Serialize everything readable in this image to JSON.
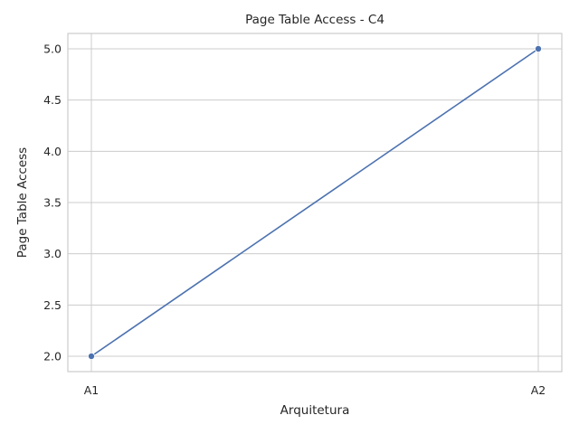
{
  "chart_data": {
    "type": "line",
    "title": "Page Table Access - C4",
    "xlabel": "Arquitetura",
    "ylabel": "Page Table Access",
    "categories": [
      "A1",
      "A2"
    ],
    "series": [
      {
        "values": [
          2.0,
          5.0
        ],
        "color": "#4c72b0",
        "marker": "circle"
      }
    ],
    "yticks": [
      "2.0",
      "2.5",
      "3.0",
      "3.5",
      "4.0",
      "4.5",
      "5.0"
    ],
    "ylim": [
      1.85,
      5.15
    ],
    "grid": true,
    "style": {
      "grid_color": "#cccccc",
      "background": "#ffffff"
    }
  }
}
